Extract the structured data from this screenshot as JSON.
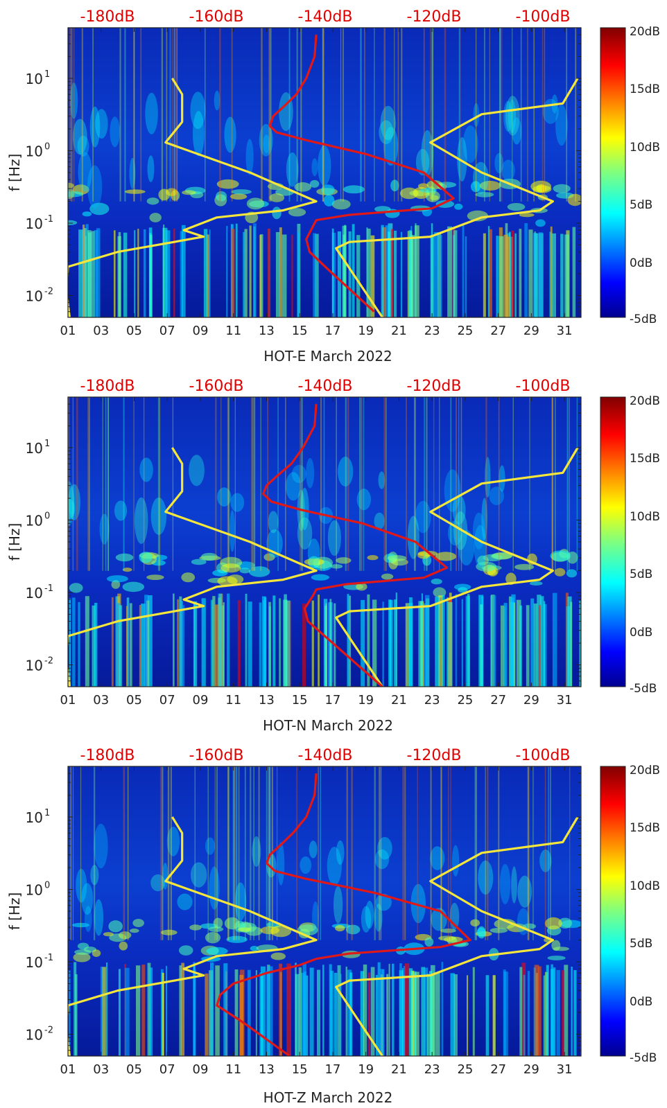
{
  "chart_data": [
    {
      "type": "heatmap",
      "title": "",
      "xlabel": "HOT-E March 2022",
      "ylabel": "f [Hz]",
      "x_ticks": [
        "01",
        "03",
        "05",
        "07",
        "09",
        "11",
        "13",
        "15",
        "17",
        "19",
        "21",
        "23",
        "25",
        "27",
        "29",
        "31"
      ],
      "xlim": [
        1,
        32
      ],
      "y_scale": "log",
      "y_ticks": [
        {
          "value": 0.01,
          "base": "10",
          "exp": "-2"
        },
        {
          "value": 0.1,
          "base": "10",
          "exp": "-1"
        },
        {
          "value": 1,
          "base": "10",
          "exp": "0"
        },
        {
          "value": 10,
          "base": "10",
          "exp": "1"
        }
      ],
      "ylim": [
        0.005,
        50
      ],
      "colorbar": {
        "ticks": [
          "20dB",
          "15dB",
          "10dB",
          "5dB",
          "0dB",
          "-5dB"
        ],
        "range": [
          -5,
          20
        ],
        "colormap": "jet"
      },
      "top_axis": {
        "ticks": [
          "-180dB",
          "-160dB",
          "-140dB",
          "-120dB",
          "-100dB"
        ],
        "color": "#e00000"
      },
      "red_curve": {
        "x": [
          16.0,
          15.9,
          15.4,
          14.8,
          14.0,
          13.4,
          13.2,
          13.6,
          15.4,
          19.0,
          22.5,
          24.3,
          23.0,
          18.0,
          16.0,
          15.8,
          15.4,
          15.6,
          17.0,
          19.5
        ],
        "y": [
          40,
          20,
          10,
          6,
          4,
          3,
          2.2,
          1.8,
          1.4,
          0.9,
          0.5,
          0.22,
          0.16,
          0.13,
          0.11,
          0.09,
          0.06,
          0.04,
          0.02,
          0.006
        ]
      },
      "yellow_curves": [
        {
          "x": [
            7.3,
            7.9,
            7.9,
            6.9,
            12.0,
            16.0,
            14.0,
            10.0,
            8.0,
            9.2,
            4.0,
            1.0,
            0.9,
            1.1
          ],
          "y": [
            10,
            6,
            2.5,
            1.3,
            0.5,
            0.2,
            0.15,
            0.12,
            0.08,
            0.065,
            0.04,
            0.025,
            0.012,
            0.005
          ]
        },
        {
          "x": [
            31.8,
            30.9,
            26.0,
            22.9,
            26.0,
            30.3,
            29.5,
            26.0,
            22.9,
            18.0,
            17.2,
            20.0
          ],
          "y": [
            10,
            4.5,
            3.2,
            1.3,
            0.5,
            0.2,
            0.15,
            0.12,
            0.065,
            0.055,
            0.045,
            0.005
          ]
        }
      ]
    },
    {
      "type": "heatmap",
      "title": "",
      "xlabel": "HOT-N March 2022",
      "ylabel": "f [Hz]",
      "x_ticks": [
        "01",
        "03",
        "05",
        "07",
        "09",
        "11",
        "13",
        "15",
        "17",
        "19",
        "21",
        "23",
        "25",
        "27",
        "29",
        "31"
      ],
      "xlim": [
        1,
        32
      ],
      "y_scale": "log",
      "y_ticks": [
        {
          "value": 0.01,
          "base": "10",
          "exp": "-2"
        },
        {
          "value": 0.1,
          "base": "10",
          "exp": "-1"
        },
        {
          "value": 1,
          "base": "10",
          "exp": "0"
        },
        {
          "value": 10,
          "base": "10",
          "exp": "1"
        }
      ],
      "ylim": [
        0.005,
        50
      ],
      "colorbar": {
        "ticks": [
          "20dB",
          "15dB",
          "10dB",
          "5dB",
          "0dB",
          "-5dB"
        ],
        "range": [
          -5,
          20
        ],
        "colormap": "jet"
      },
      "top_axis": {
        "ticks": [
          "-180dB",
          "-160dB",
          "-140dB",
          "-120dB",
          "-100dB"
        ],
        "color": "#e00000"
      },
      "red_curve": {
        "x": [
          16.0,
          15.9,
          15.2,
          14.5,
          13.6,
          13.0,
          12.8,
          13.3,
          15.0,
          18.8,
          22.0,
          23.9,
          22.5,
          17.8,
          16.0,
          15.8,
          15.3,
          15.5,
          17.0,
          20.0
        ],
        "y": [
          40,
          20,
          10,
          6,
          4,
          3,
          2.3,
          1.8,
          1.4,
          0.9,
          0.5,
          0.22,
          0.16,
          0.13,
          0.11,
          0.09,
          0.06,
          0.04,
          0.02,
          0.005
        ]
      },
      "yellow_curves": [
        {
          "x": [
            7.3,
            7.9,
            7.9,
            6.9,
            12.0,
            16.0,
            14.0,
            10.0,
            8.0,
            9.2,
            4.0,
            1.0,
            0.9,
            1.1
          ],
          "y": [
            10,
            6,
            2.5,
            1.3,
            0.5,
            0.2,
            0.15,
            0.12,
            0.08,
            0.065,
            0.04,
            0.025,
            0.012,
            0.005
          ]
        },
        {
          "x": [
            31.8,
            30.9,
            26.0,
            22.9,
            26.0,
            30.3,
            29.5,
            26.0,
            22.9,
            18.0,
            17.2,
            20.0
          ],
          "y": [
            10,
            4.5,
            3.2,
            1.3,
            0.5,
            0.2,
            0.15,
            0.12,
            0.065,
            0.055,
            0.045,
            0.005
          ]
        }
      ]
    },
    {
      "type": "heatmap",
      "title": "",
      "xlabel": "HOT-Z March 2022",
      "ylabel": "f [Hz]",
      "x_ticks": [
        "01",
        "03",
        "05",
        "07",
        "09",
        "11",
        "13",
        "15",
        "17",
        "19",
        "21",
        "23",
        "25",
        "27",
        "29",
        "31"
      ],
      "xlim": [
        1,
        32
      ],
      "y_scale": "log",
      "y_ticks": [
        {
          "value": 0.01,
          "base": "10",
          "exp": "-2"
        },
        {
          "value": 0.1,
          "base": "10",
          "exp": "-1"
        },
        {
          "value": 1,
          "base": "10",
          "exp": "0"
        },
        {
          "value": 10,
          "base": "10",
          "exp": "1"
        }
      ],
      "ylim": [
        0.005,
        50
      ],
      "colorbar": {
        "ticks": [
          "20dB",
          "15dB",
          "10dB",
          "5dB",
          "0dB",
          "-5dB"
        ],
        "range": [
          -5,
          20
        ],
        "colormap": "jet"
      },
      "top_axis": {
        "ticks": [
          "-180dB",
          "-160dB",
          "-140dB",
          "-120dB",
          "-100dB"
        ],
        "color": "#e00000"
      },
      "red_curve": {
        "x": [
          16.0,
          15.9,
          15.4,
          14.6,
          13.8,
          13.2,
          13.0,
          13.5,
          15.4,
          19.5,
          23.5,
          25.3,
          23.5,
          18.0,
          16.0,
          15.0,
          13.0,
          11.0,
          10.2,
          10.0,
          11.5,
          14.4
        ],
        "y": [
          40,
          20,
          10,
          6,
          4,
          3,
          2.3,
          1.8,
          1.4,
          0.9,
          0.5,
          0.2,
          0.16,
          0.13,
          0.11,
          0.09,
          0.07,
          0.05,
          0.035,
          0.025,
          0.015,
          0.005
        ]
      },
      "yellow_curves": [
        {
          "x": [
            7.3,
            7.9,
            7.9,
            6.9,
            12.0,
            16.0,
            14.0,
            10.0,
            8.0,
            9.2,
            4.0,
            1.0,
            0.9,
            1.1
          ],
          "y": [
            10,
            6,
            2.5,
            1.3,
            0.5,
            0.2,
            0.15,
            0.12,
            0.08,
            0.065,
            0.04,
            0.025,
            0.012,
            0.005
          ]
        },
        {
          "x": [
            31.8,
            30.9,
            26.0,
            22.9,
            26.0,
            30.3,
            29.5,
            26.0,
            22.9,
            18.0,
            17.2,
            20.0
          ],
          "y": [
            10,
            4.5,
            3.2,
            1.3,
            0.5,
            0.2,
            0.15,
            0.12,
            0.065,
            0.055,
            0.045,
            0.005
          ]
        }
      ]
    }
  ],
  "colors": {
    "red_curve": "#e01818",
    "yellow_curve": "#f5e63c",
    "background_blue": "#0a1ea8",
    "axis_text": "#222222"
  }
}
